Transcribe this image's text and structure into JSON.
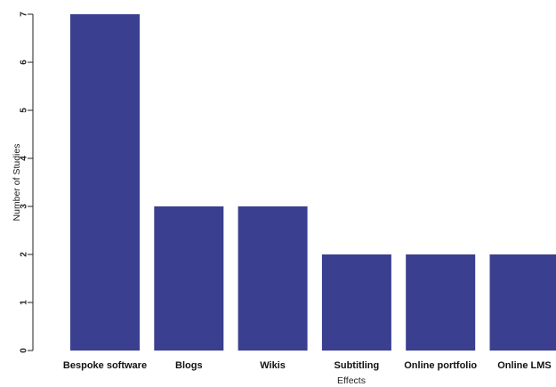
{
  "chart_data": {
    "type": "bar",
    "categories": [
      "Bespoke software",
      "Blogs",
      "Wikis",
      "Subtitling",
      "Online portfolio",
      "Online LMS"
    ],
    "values": [
      7,
      3,
      3,
      2,
      2,
      2
    ],
    "title": "",
    "xlabel": "Effects",
    "ylabel": "Number of Studies",
    "ylim": [
      0,
      7
    ],
    "yticks": [
      0,
      1,
      2,
      3,
      4,
      5,
      6,
      7
    ],
    "grid": false,
    "legend": "none",
    "bar_color": "#3a3f8f"
  }
}
